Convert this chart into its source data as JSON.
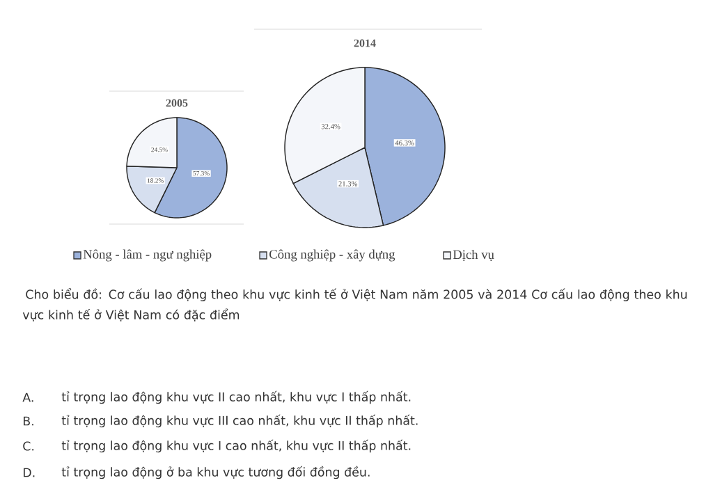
{
  "chart_data": [
    {
      "type": "pie",
      "title": "2005",
      "categories": [
        "Nông - lâm - ngư nghiệp",
        "Công nghiệp - xây dựng",
        "Dịch vụ"
      ],
      "values": [
        57.3,
        18.2,
        24.5
      ],
      "value_labels": [
        "57.3%",
        "18.2%",
        "24.5%"
      ],
      "colors": [
        "#9bb2dc",
        "#d6dfef",
        "#f4f6fa"
      ],
      "legend": "bottom",
      "annotations": [
        "Cho biểu đồ: Cơ cấu lao động theo khu vực kinh tế ở Việt Nam năm 2005 và 2014 Cơ cấu lao động theo khu vực kinh tế ở Việt Nam có đặc điểm",
        "A.",
        "tỉ trọng lao động khu vực II cao nhất, khu vực I thấp nhất.",
        "B.",
        "tỉ trọng lao động khu vực III cao nhất, khu vực II thấp nhất.",
        "C.",
        "tỉ trọng lao động khu vực I cao nhất, khu vực II thấp nhất.",
        "D.",
        "tỉ trọng lao động ở ba khu vực tương đối đồng đều."
      ]
    },
    {
      "type": "pie",
      "title": "2014",
      "values": [
        46.3,
        21.3,
        32.4
      ],
      "value_labels": [
        "46.3%",
        "21.3%",
        "32.4%"
      ],
      "colors": [
        "#9bb2dc",
        "#d6dfef",
        "#f4f6fa"
      ]
    }
  ]
}
